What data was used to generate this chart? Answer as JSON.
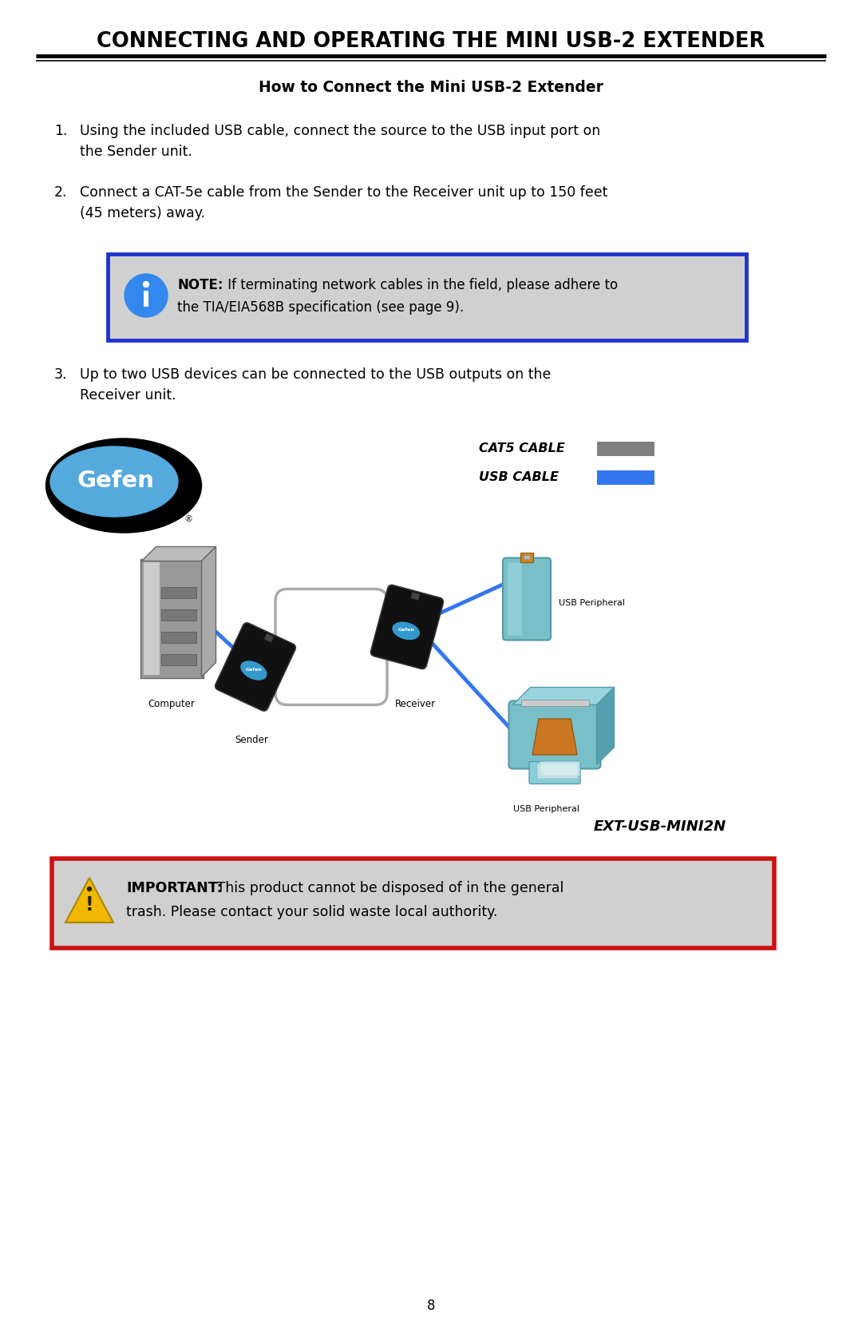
{
  "page_bg": "#ffffff",
  "title": "CONNECTING AND OPERATING THE MINI USB-2 EXTENDER",
  "subtitle": "How to Connect the Mini USB-2 Extender",
  "step1_num": "1.",
  "step1": "Using the included USB cable, connect the source to the USB input port on\nthe Sender unit.",
  "step2_num": "2.",
  "step2": "Connect a CAT-5e cable from the Sender to the Receiver unit up to 150 feet\n(45 meters) away.",
  "step3_num": "3.",
  "step3": "Up to two USB devices can be connected to the USB outputs on the\nReceiver unit.",
  "note_bold": "NOTE:",
  "note_rest": "  If terminating network cables in the field, please adhere to\nthe TIA/EIA568B specification (see page 9).",
  "note_bg": "#d0d0d0",
  "note_border": "#2233cc",
  "info_icon_bg": "#3388ee",
  "important_bold": "IMPORTANT:",
  "important_rest": " This product cannot be disposed of in the general\ntrash. Please contact your solid waste local authority.",
  "important_bg": "#d0d0d0",
  "important_border": "#cc1111",
  "warning_icon_color": "#f0b800",
  "legend_cat5_color": "#808080",
  "legend_usb_color": "#3377ee",
  "legend_cat5_label": "CAT5 CABLE",
  "legend_usb_label": "USB CABLE",
  "ext_label": "EXT-USB-MINI2N",
  "page_number": "8",
  "label_computer": "Computer",
  "label_sender": "Sender",
  "label_receiver": "Receiver",
  "label_usb1": "USB Peripheral",
  "label_usb2": "USB Peripheral"
}
